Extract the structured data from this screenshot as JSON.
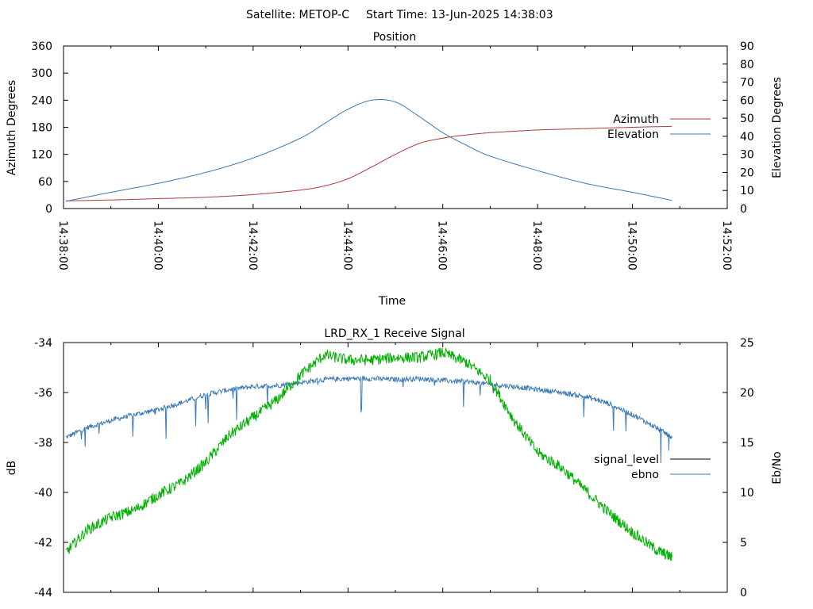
{
  "header": {
    "satellite": "Satellite: METOP-C",
    "start_time": "Start Time: 13-Jun-2025 14:38:03"
  },
  "chart_data": [
    {
      "type": "line",
      "title": "Position",
      "xlabel": "Time",
      "ylabel": "Azimuth Degrees",
      "y2label": "Elevation Degrees",
      "xlim": [
        "14:38:00",
        "14:52:00"
      ],
      "ylim": [
        0,
        360
      ],
      "y2lim": [
        0,
        90
      ],
      "x_ticks": [
        "14:38:00",
        "14:40:00",
        "14:42:00",
        "14:44:00",
        "14:46:00",
        "14:48:00",
        "14:50:00",
        "14:52:00"
      ],
      "y_ticks": [
        0,
        60,
        120,
        180,
        240,
        300,
        360
      ],
      "y2_ticks": [
        0,
        10,
        20,
        30,
        40,
        50,
        60,
        70,
        80,
        90
      ],
      "legend_position": "right",
      "series": [
        {
          "name": "Azimuth",
          "axis": "left",
          "color": "#b03a3a",
          "x": [
            "14:38:03",
            "14:39:00",
            "14:40:00",
            "14:41:00",
            "14:42:00",
            "14:43:00",
            "14:43:30",
            "14:44:00",
            "14:44:30",
            "14:45:00",
            "14:45:30",
            "14:46:00",
            "14:46:30",
            "14:47:00",
            "14:48:00",
            "14:49:00",
            "14:50:00",
            "14:50:50"
          ],
          "values": [
            17,
            19,
            22,
            25,
            31,
            41,
            50,
            66,
            92,
            120,
            144,
            156,
            163,
            168,
            174,
            177,
            180,
            182
          ]
        },
        {
          "name": "Elevation",
          "axis": "right",
          "color": "#3b7ab8",
          "x": [
            "14:38:03",
            "14:39:00",
            "14:40:00",
            "14:41:00",
            "14:42:00",
            "14:43:00",
            "14:43:30",
            "14:44:00",
            "14:44:30",
            "14:45:00",
            "14:45:30",
            "14:46:00",
            "14:46:30",
            "14:47:00",
            "14:48:00",
            "14:49:00",
            "14:50:00",
            "14:50:50"
          ],
          "values": [
            4,
            9,
            14,
            20,
            28,
            39,
            47,
            55,
            60,
            59,
            51,
            42,
            35,
            29,
            21,
            14,
            9,
            4.5
          ]
        }
      ]
    },
    {
      "type": "line",
      "title": "LRD_RX_1 Receive Signal",
      "xlabel": "",
      "ylabel": "dB",
      "y2label": "Eb/No",
      "xlim": [
        "14:38:00",
        "14:52:00"
      ],
      "ylim": [
        -44,
        -34
      ],
      "y2lim": [
        0,
        25
      ],
      "y_ticks": [
        -44,
        -42,
        -40,
        -38,
        -36,
        -34
      ],
      "y2_ticks": [
        0,
        5,
        10,
        15,
        20,
        25
      ],
      "legend_position": "right",
      "series": [
        {
          "name": "signal_level",
          "axis": "left",
          "color": "#000000",
          "x": [],
          "values": []
        },
        {
          "name": "ebno",
          "axis": "right",
          "color": "#3b7ab8",
          "x": [
            "14:38:03",
            "14:38:30",
            "14:39:00",
            "14:39:30",
            "14:40:00",
            "14:40:30",
            "14:41:00",
            "14:41:30",
            "14:42:00",
            "14:42:30",
            "14:43:00",
            "14:43:30",
            "14:44:00",
            "14:44:30",
            "14:45:00",
            "14:45:30",
            "14:46:00",
            "14:46:30",
            "14:47:00",
            "14:47:30",
            "14:48:00",
            "14:48:30",
            "14:49:00",
            "14:49:30",
            "14:50:00",
            "14:50:30",
            "14:50:50"
          ],
          "values": [
            15.5,
            16.5,
            17.2,
            17.8,
            18.3,
            19.0,
            19.8,
            20.3,
            20.6,
            20.7,
            21.0,
            21.3,
            21.4,
            21.4,
            21.3,
            21.4,
            21.2,
            21.1,
            20.8,
            20.6,
            20.3,
            20.0,
            19.6,
            18.9,
            17.8,
            16.5,
            15.5
          ]
        },
        {
          "name": "",
          "axis": "left",
          "color": "#00b000",
          "x": [
            "14:38:03",
            "14:38:30",
            "14:39:00",
            "14:39:30",
            "14:40:00",
            "14:40:30",
            "14:41:00",
            "14:41:30",
            "14:42:00",
            "14:42:30",
            "14:43:00",
            "14:43:30",
            "14:44:00",
            "14:44:30",
            "14:45:00",
            "14:45:30",
            "14:46:00",
            "14:46:30",
            "14:47:00",
            "14:47:30",
            "14:48:00",
            "14:48:30",
            "14:49:00",
            "14:49:30",
            "14:50:00",
            "14:50:30",
            "14:50:50"
          ],
          "values": [
            -42.4,
            -41.5,
            -41.0,
            -40.7,
            -40.1,
            -39.6,
            -38.8,
            -37.7,
            -37.0,
            -36.3,
            -35.3,
            -34.5,
            -34.7,
            -34.7,
            -34.6,
            -34.6,
            -34.4,
            -34.8,
            -35.5,
            -37.1,
            -38.4,
            -39.0,
            -39.9,
            -40.8,
            -41.6,
            -42.3,
            -42.6
          ]
        }
      ]
    }
  ]
}
